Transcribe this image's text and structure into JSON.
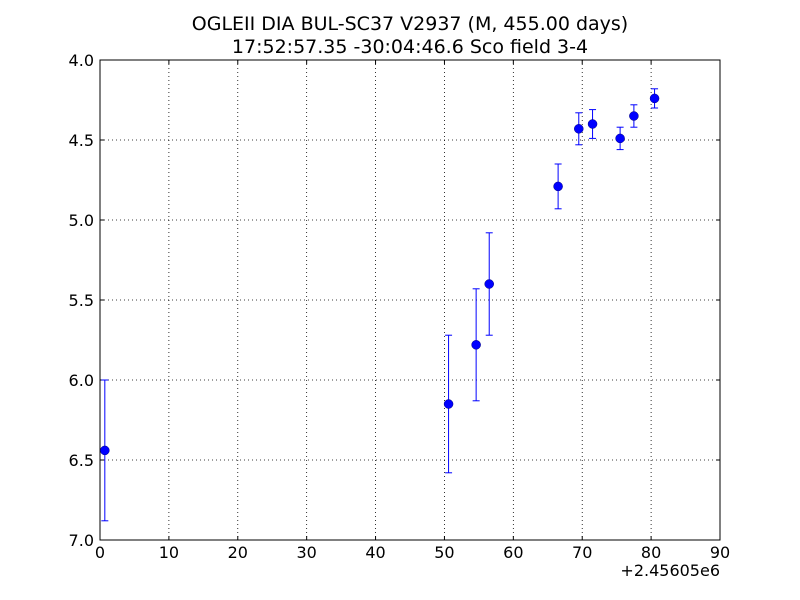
{
  "chart_data": {
    "type": "scatter",
    "title_line1": "OGLEII DIA BUL-SC37 V2937  (M, 455.00 days)",
    "title_line2": "17:52:57.35 -30:04:46.6 Sco field 3-4",
    "xlabel": "",
    "ylabel": "",
    "x_offset_label": "+2.45605e6",
    "xlim": [
      0,
      90
    ],
    "ylim": [
      7.0,
      4.0
    ],
    "y_inverted": true,
    "grid": true,
    "x_ticks": [
      0,
      10,
      20,
      30,
      40,
      50,
      60,
      70,
      80,
      90
    ],
    "x_tick_labels": [
      "0",
      "10",
      "20",
      "30",
      "40",
      "50",
      "60",
      "70",
      "80",
      "90"
    ],
    "y_ticks": [
      4.0,
      4.5,
      5.0,
      5.5,
      6.0,
      6.5,
      7.0
    ],
    "y_tick_labels": [
      "4.0",
      "4.5",
      "5.0",
      "5.5",
      "6.0",
      "6.5",
      "7.0"
    ],
    "marker_color": "#0000ff",
    "series": [
      {
        "points": [
          {
            "x": 0.7,
            "y": 6.44,
            "err": 0.44
          },
          {
            "x": 50.6,
            "y": 6.15,
            "err": 0.43
          },
          {
            "x": 54.6,
            "y": 5.78,
            "err": 0.35
          },
          {
            "x": 56.5,
            "y": 5.4,
            "err": 0.32
          },
          {
            "x": 66.5,
            "y": 4.79,
            "err": 0.14
          },
          {
            "x": 69.5,
            "y": 4.43,
            "err": 0.1
          },
          {
            "x": 71.5,
            "y": 4.4,
            "err": 0.09
          },
          {
            "x": 75.5,
            "y": 4.49,
            "err": 0.07
          },
          {
            "x": 77.5,
            "y": 4.35,
            "err": 0.07
          },
          {
            "x": 80.5,
            "y": 4.24,
            "err": 0.06
          }
        ]
      }
    ]
  }
}
